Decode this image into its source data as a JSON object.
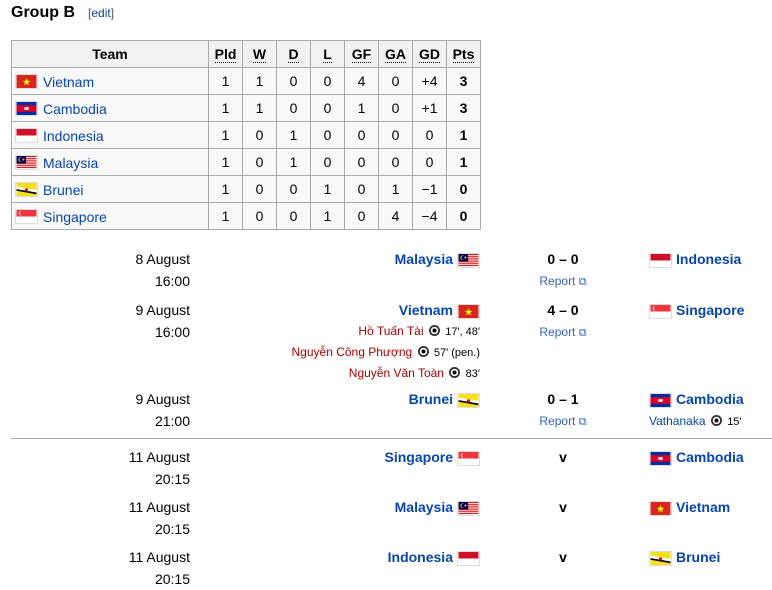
{
  "header": {
    "title": "Group B",
    "edit": "edit"
  },
  "standings": {
    "columns": [
      "Team",
      "Pld",
      "W",
      "D",
      "L",
      "GF",
      "GA",
      "GD",
      "Pts"
    ],
    "rows": [
      {
        "team": "Vietnam",
        "flag": "VN",
        "pld": "1",
        "w": "1",
        "d": "0",
        "l": "0",
        "gf": "4",
        "ga": "0",
        "gd": "+4",
        "pts": "3"
      },
      {
        "team": "Cambodia",
        "flag": "KH",
        "pld": "1",
        "w": "1",
        "d": "0",
        "l": "0",
        "gf": "1",
        "ga": "0",
        "gd": "+1",
        "pts": "3"
      },
      {
        "team": "Indonesia",
        "flag": "ID",
        "pld": "1",
        "w": "0",
        "d": "1",
        "l": "0",
        "gf": "0",
        "ga": "0",
        "gd": "0",
        "pts": "1"
      },
      {
        "team": "Malaysia",
        "flag": "MY",
        "pld": "1",
        "w": "0",
        "d": "1",
        "l": "0",
        "gf": "0",
        "ga": "0",
        "gd": "0",
        "pts": "1"
      },
      {
        "team": "Brunei",
        "flag": "BN",
        "pld": "1",
        "w": "0",
        "d": "0",
        "l": "1",
        "gf": "0",
        "ga": "1",
        "gd": "−1",
        "pts": "0"
      },
      {
        "team": "Singapore",
        "flag": "SG",
        "pld": "1",
        "w": "0",
        "d": "0",
        "l": "1",
        "gf": "0",
        "ga": "4",
        "gd": "−4",
        "pts": "0"
      }
    ]
  },
  "matches": [
    {
      "date": "8 August",
      "time": "16:00",
      "home": "Malaysia",
      "home_flag": "MY",
      "score": "0 – 0",
      "report": "Report",
      "away": "Indonesia",
      "away_flag": "ID",
      "home_scorers": [],
      "away_scorers": []
    },
    {
      "date": "9 August",
      "time": "16:00",
      "home": "Vietnam",
      "home_flag": "VN",
      "score": "4 – 0",
      "report": "Report",
      "away": "Singapore",
      "away_flag": "SG",
      "home_scorers": [
        {
          "name": "Hồ Tuấn Tài",
          "min": "17', 48'"
        },
        {
          "name": "Nguyễn Công Phượng",
          "min": "57' (pen.)"
        },
        {
          "name": "Nguyễn Văn Toàn",
          "min": "83'"
        }
      ],
      "away_scorers": []
    },
    {
      "date": "9 August",
      "time": "21:00",
      "home": "Brunei",
      "home_flag": "BN",
      "score": "0 – 1",
      "report": "Report",
      "away": "Cambodia",
      "away_flag": "KH",
      "home_scorers": [],
      "away_scorers": [
        {
          "name": "Vathanaka",
          "min": "15'"
        }
      ]
    },
    {
      "date": "11 August",
      "time": "20:15",
      "home": "Singapore",
      "home_flag": "SG",
      "score": "v",
      "away": "Cambodia",
      "away_flag": "KH",
      "home_scorers": [],
      "away_scorers": []
    },
    {
      "date": "11 August",
      "time": "20:15",
      "home": "Malaysia",
      "home_flag": "MY",
      "score": "v",
      "away": "Vietnam",
      "away_flag": "VN",
      "home_scorers": [],
      "away_scorers": []
    },
    {
      "date": "11 August",
      "time": "20:15",
      "home": "Indonesia",
      "home_flag": "ID",
      "score": "v",
      "away": "Brunei",
      "away_flag": "BN",
      "home_scorers": [],
      "away_scorers": []
    }
  ]
}
